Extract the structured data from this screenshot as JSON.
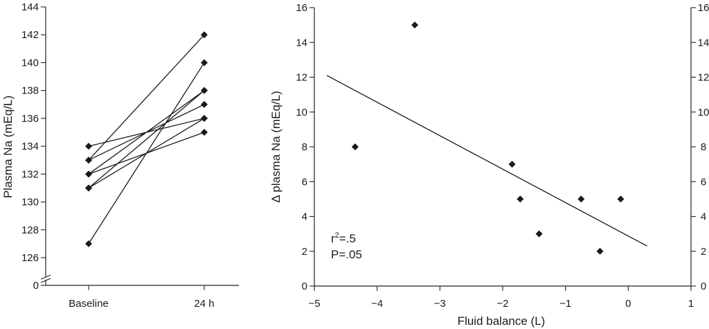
{
  "chart_data": [
    {
      "type": "line",
      "ylabel": "Plasma Na (mEq/L)",
      "xlabel": "",
      "categories": [
        "Baseline",
        "24 h"
      ],
      "y_ticks": [
        "0",
        "126",
        "128",
        "130",
        "132",
        "134",
        "136",
        "138",
        "140",
        "142",
        "144"
      ],
      "ylim": [
        126,
        144
      ],
      "axis_break": true,
      "marker": "diamond",
      "series": [
        {
          "values": [
            134,
            136
          ]
        },
        {
          "values": [
            133,
            137
          ]
        },
        {
          "values": [
            132,
            138
          ]
        },
        {
          "values": [
            132,
            135
          ]
        },
        {
          "values": [
            131,
            138
          ]
        },
        {
          "values": [
            131,
            136
          ]
        },
        {
          "values": [
            133,
            142
          ]
        },
        {
          "values": [
            127,
            140
          ]
        }
      ]
    },
    {
      "type": "scatter",
      "xlabel": "Fluid balance (L)",
      "ylabel": "Δ plasma Na (mEq/L)",
      "xlim": [
        -5,
        1
      ],
      "ylim": [
        0,
        16
      ],
      "x_ticks": [
        "−5",
        "−4",
        "−3",
        "−2",
        "−1",
        "0",
        "1"
      ],
      "y_ticks": [
        "0",
        "2",
        "4",
        "6",
        "8",
        "10",
        "12",
        "14",
        "16"
      ],
      "secondary_y_axis": true,
      "marker": "diamond",
      "points": [
        {
          "x": -4.35,
          "y": 8
        },
        {
          "x": -3.4,
          "y": 15
        },
        {
          "x": -1.85,
          "y": 7
        },
        {
          "x": -1.72,
          "y": 5
        },
        {
          "x": -1.42,
          "y": 3
        },
        {
          "x": -0.75,
          "y": 5
        },
        {
          "x": -0.45,
          "y": 2
        },
        {
          "x": -0.12,
          "y": 5
        }
      ],
      "regression_line": {
        "x": [
          -4.8,
          0.3
        ],
        "y": [
          12.1,
          2.3
        ]
      },
      "annotations": {
        "r2_base": "r",
        "r2_exp": "2",
        "r2_value": "=.5",
        "p_value": "P=.05"
      }
    }
  ]
}
